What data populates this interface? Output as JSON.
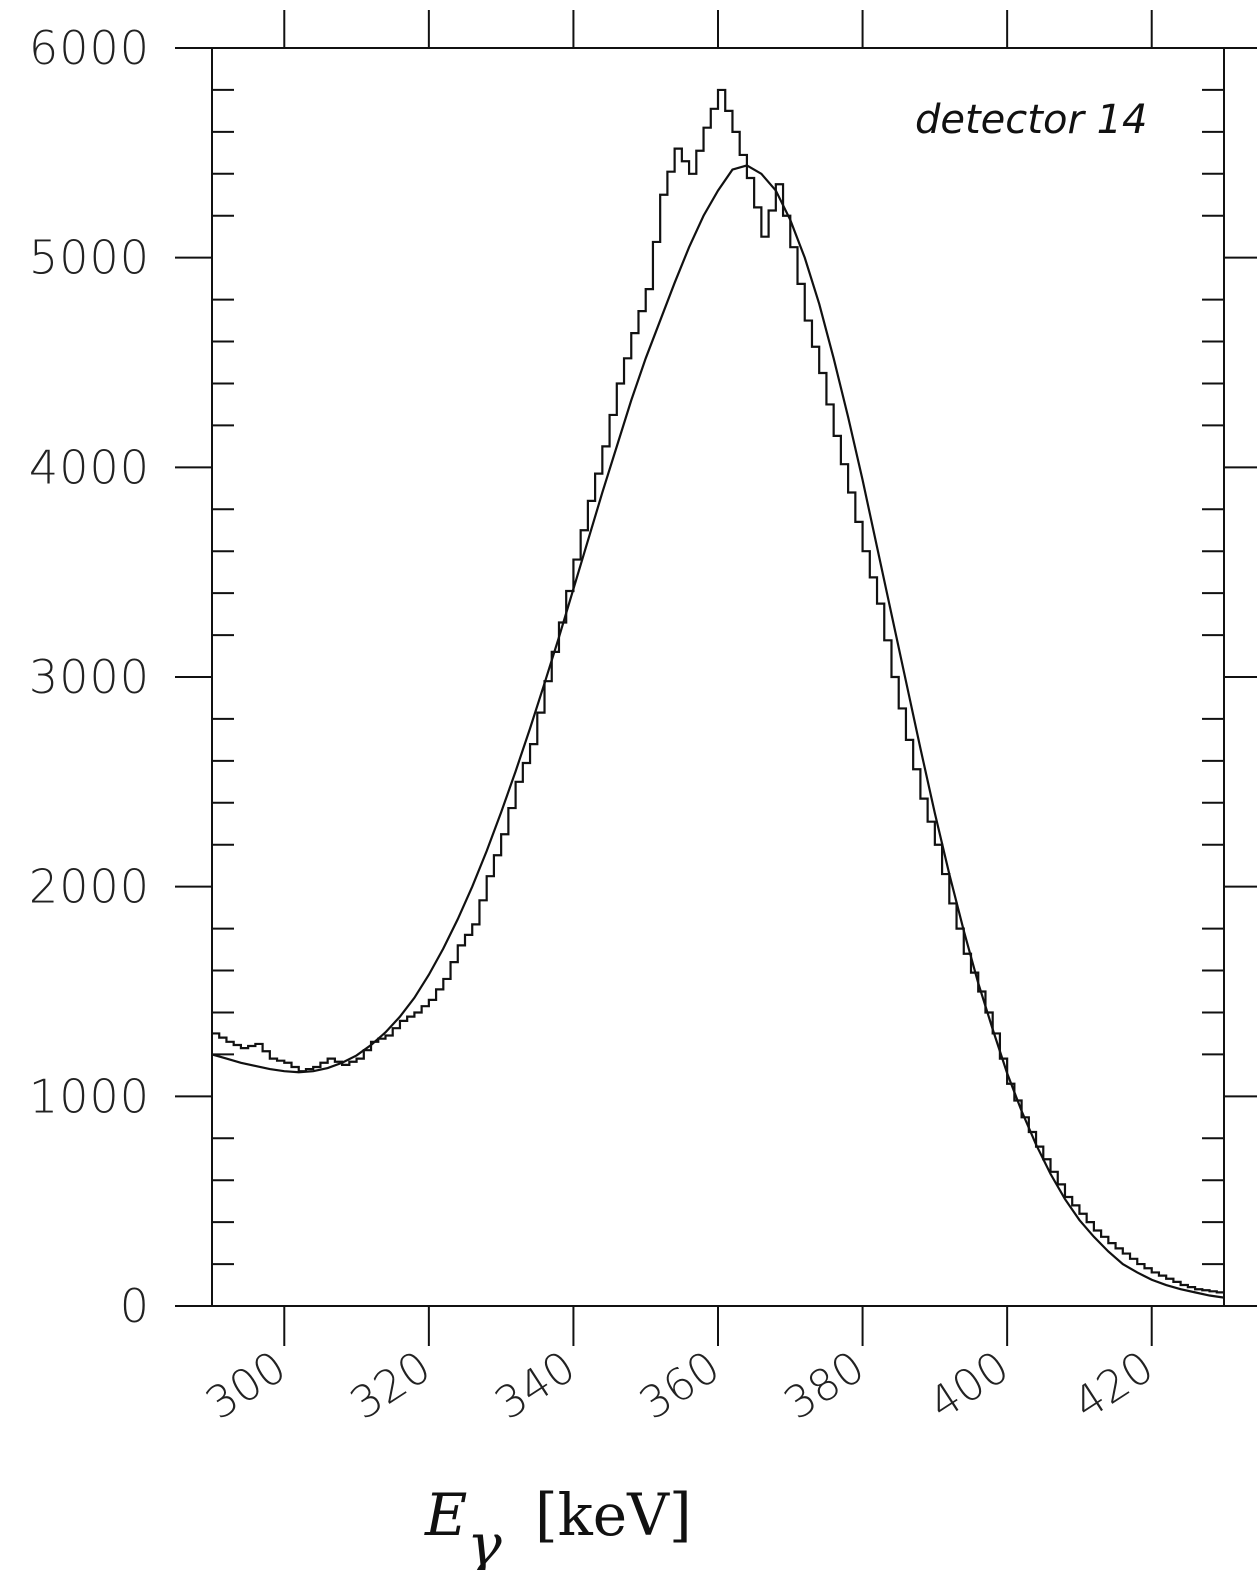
{
  "chart_data": {
    "type": "line",
    "title": "",
    "annotation": "detector 14",
    "xlabel_main": "E",
    "xlabel_sub": "γ",
    "xlabel_unit": "[keV]",
    "ylabel": "",
    "xlim": [
      290,
      430
    ],
    "ylim": [
      0,
      6000
    ],
    "x_ticks": [
      300,
      320,
      340,
      360,
      380,
      400,
      420
    ],
    "x_tick_labels": [
      "300",
      "320",
      "340",
      "360",
      "380",
      "400",
      "420"
    ],
    "y_ticks": [
      0,
      1000,
      2000,
      3000,
      4000,
      5000,
      6000
    ],
    "y_tick_labels": [
      "0",
      "1000",
      "2000",
      "3000",
      "4000",
      "5000",
      "6000"
    ],
    "grid": false,
    "series": [
      {
        "style": "step",
        "x": [
          290,
          292,
          294,
          296,
          298,
          300,
          302,
          304,
          306,
          308,
          310,
          312,
          314,
          316,
          318,
          320,
          322,
          324,
          326,
          328,
          330,
          332,
          334,
          336,
          338,
          340,
          342,
          344,
          346,
          348,
          350,
          352,
          354,
          356,
          358,
          360,
          362,
          364,
          366,
          368,
          370,
          372,
          374,
          376,
          378,
          380,
          382,
          384,
          386,
          388,
          390,
          392,
          394,
          396,
          398,
          400,
          402,
          404,
          406,
          408,
          410,
          412,
          414,
          416,
          418,
          420,
          422,
          424,
          426,
          428,
          430
        ],
        "values": [
          1300,
          1260,
          1230,
          1250,
          1180,
          1160,
          1120,
          1140,
          1180,
          1150,
          1180,
          1260,
          1290,
          1360,
          1400,
          1460,
          1560,
          1720,
          1820,
          2050,
          2250,
          2500,
          2680,
          2980,
          3260,
          3560,
          3840,
          4100,
          4400,
          4640,
          4850,
          5300,
          5520,
          5400,
          5620,
          5800,
          5600,
          5380,
          5100,
          5350,
          5050,
          4700,
          4450,
          4150,
          3880,
          3600,
          3350,
          3000,
          2700,
          2420,
          2200,
          1920,
          1680,
          1500,
          1300,
          1060,
          900,
          760,
          640,
          520,
          440,
          360,
          300,
          250,
          200,
          160,
          130,
          100,
          80,
          70,
          60
        ]
      },
      {
        "style": "smooth",
        "x": [
          290,
          292,
          294,
          296,
          298,
          300,
          302,
          304,
          306,
          308,
          310,
          312,
          314,
          316,
          318,
          320,
          322,
          324,
          326,
          328,
          330,
          332,
          334,
          336,
          338,
          340,
          342,
          344,
          346,
          348,
          350,
          352,
          354,
          356,
          358,
          360,
          362,
          364,
          366,
          368,
          370,
          372,
          374,
          376,
          378,
          380,
          382,
          384,
          386,
          388,
          390,
          392,
          394,
          396,
          398,
          400,
          402,
          404,
          406,
          408,
          410,
          412,
          414,
          416,
          418,
          420,
          422,
          424,
          426,
          428,
          430
        ],
        "values": [
          1200,
          1180,
          1160,
          1145,
          1130,
          1120,
          1115,
          1120,
          1135,
          1160,
          1195,
          1245,
          1305,
          1380,
          1470,
          1580,
          1705,
          1845,
          2000,
          2170,
          2355,
          2550,
          2755,
          2970,
          3190,
          3420,
          3650,
          3880,
          4100,
          4320,
          4520,
          4700,
          4880,
          5050,
          5200,
          5320,
          5420,
          5440,
          5400,
          5320,
          5180,
          5000,
          4780,
          4520,
          4240,
          3940,
          3620,
          3300,
          2980,
          2660,
          2350,
          2060,
          1790,
          1540,
          1320,
          1110,
          930,
          770,
          630,
          510,
          410,
          330,
          260,
          200,
          160,
          125,
          100,
          80,
          65,
          50,
          40
        ]
      }
    ]
  }
}
